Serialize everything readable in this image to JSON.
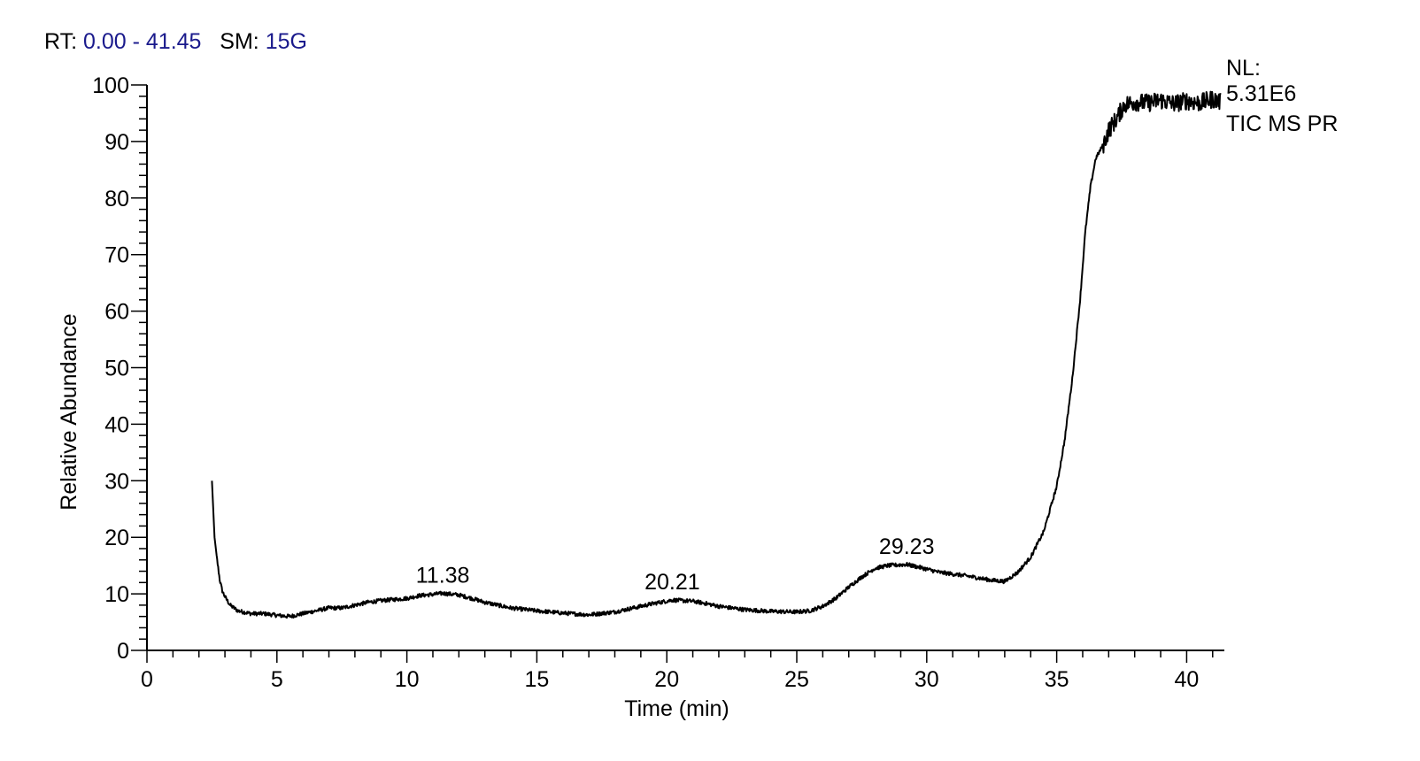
{
  "header": {
    "rt_label": "RT:",
    "rt_value": "0.00 - 41.45",
    "sm_label": "SM:",
    "sm_value": "15G"
  },
  "info": {
    "nl_label": "NL:",
    "nl_value": "5.31E6",
    "trace": "TIC  MS PR"
  },
  "colors": {
    "trace": "#000000",
    "header_value": "#1a1a8c"
  },
  "chart_data": {
    "type": "line",
    "title": "",
    "xlabel": "Time (min)",
    "ylabel": "Relative Abundance",
    "xlim": [
      0,
      41.45
    ],
    "ylim": [
      0,
      100
    ],
    "xticks": [
      0,
      5,
      10,
      15,
      20,
      25,
      30,
      35,
      40
    ],
    "yticks": [
      0,
      10,
      20,
      30,
      40,
      50,
      60,
      70,
      80,
      90,
      100
    ],
    "grid": false,
    "series": [
      {
        "x": [
          2.5,
          2.55,
          2.6,
          2.7,
          2.8,
          2.9,
          3.0,
          3.2,
          3.5,
          4.0,
          4.5,
          5.0,
          5.5,
          6.0,
          6.5,
          7.0,
          7.5,
          8.0,
          8.5,
          9.0,
          9.5,
          10.0,
          10.5,
          11.0,
          11.38,
          12.0,
          12.5,
          13.0,
          13.5,
          14.0,
          15.0,
          16.0,
          17.0,
          18.0,
          19.0,
          19.5,
          20.21,
          21.0,
          21.5,
          22.0,
          23.0,
          24.0,
          25.0,
          25.5,
          26.0,
          26.5,
          27.0,
          27.5,
          28.0,
          28.5,
          29.23,
          29.8,
          30.5,
          31.0,
          31.5,
          32.0,
          32.5,
          33.0,
          33.5,
          34.0,
          34.5,
          35.0,
          35.3,
          35.6,
          35.9,
          36.1,
          36.3,
          36.5,
          36.8,
          37.0,
          37.3,
          37.6,
          38.0,
          38.5,
          39.0,
          39.5,
          40.0,
          40.5,
          41.0,
          41.3
        ],
        "y": [
          30,
          25,
          20,
          16,
          12.5,
          10.5,
          9.5,
          8,
          7,
          6.5,
          6.5,
          6.2,
          6.0,
          6.5,
          7.0,
          7.5,
          7.5,
          8,
          8.5,
          8.8,
          9.0,
          9.2,
          9.7,
          9.9,
          10.1,
          9.8,
          9.2,
          8.5,
          8.0,
          7.5,
          7.0,
          6.6,
          6.3,
          6.8,
          7.8,
          8.3,
          8.9,
          8.7,
          8.3,
          7.8,
          7.2,
          6.9,
          6.8,
          7.0,
          7.8,
          9.2,
          11.2,
          13.0,
          14.5,
          15.0,
          15.2,
          14.6,
          13.8,
          13.5,
          13.2,
          12.8,
          12.4,
          12.2,
          13.8,
          16.5,
          21.0,
          29.0,
          37.0,
          48.0,
          62.0,
          74.0,
          82.0,
          87.0,
          89.5,
          92.0,
          94.0,
          96.5,
          97.0,
          96.8,
          97.3,
          96.7,
          97.2,
          96.8,
          97.5,
          97.0
        ]
      }
    ],
    "annotations": [
      {
        "x": 11.38,
        "y": 10.1,
        "text": "11.38"
      },
      {
        "x": 20.21,
        "y": 8.9,
        "text": "20.21"
      },
      {
        "x": 29.23,
        "y": 15.2,
        "text": "29.23"
      }
    ]
  }
}
